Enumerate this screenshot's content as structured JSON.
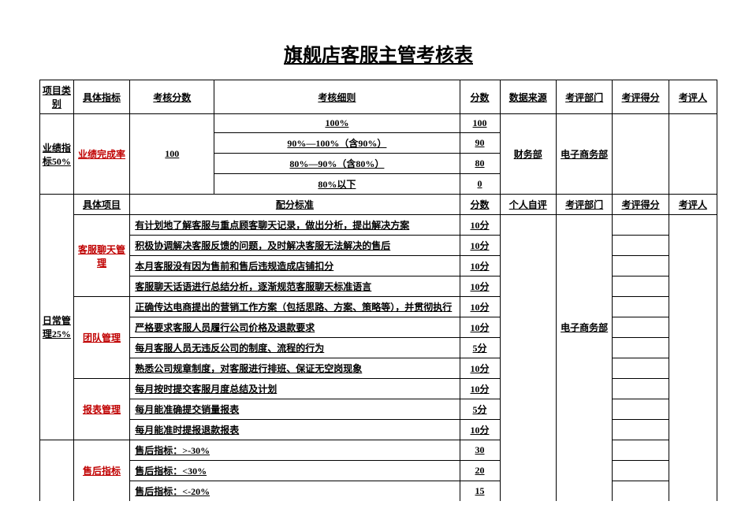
{
  "title": "旗舰店客服主管考核表",
  "header": {
    "category": "项目类别",
    "indicator": "具体指标",
    "score": "考核分数",
    "detail": "考核细则",
    "points": "分数",
    "source": "数据来源",
    "dept": "考评部门",
    "result": "考评得分",
    "reviewer": "考评人"
  },
  "section1": {
    "category": "业绩指标50%",
    "indicator": "业绩完成率",
    "score": "100",
    "rows": [
      {
        "detail": "100%",
        "points": "100"
      },
      {
        "detail": "90%—100%（含90%）",
        "points": "90"
      },
      {
        "detail": "80%—90%（含80%）",
        "points": "80"
      },
      {
        "detail": "80%以下",
        "points": "0"
      }
    ],
    "source": "财务部",
    "dept": "电子商务部"
  },
  "header2": {
    "indicator": "具体项目",
    "detail": "配分标准",
    "points": "分数",
    "source": "个人自评",
    "dept": "考评部门",
    "result": "考评得分",
    "reviewer": "考评人"
  },
  "section2": {
    "category": "日常管理25%",
    "dept": "电子商务部",
    "groups": [
      {
        "name": "客服聊天管理",
        "rows": [
          {
            "detail": "有计划地了解客服与重点顾客聊天记录，做出分析，提出解决方案",
            "points": "10分"
          },
          {
            "detail": "积极协调解决客服反馈的问题，及时解决客服无法解决的售后",
            "points": "10分"
          },
          {
            "detail": "本月客服没有因为售前和售后违规造成店铺扣分",
            "points": "10分"
          },
          {
            "detail": "客服聊天话语进行总结分析，逐渐规范客服聊天标准语言",
            "points": "10分"
          }
        ]
      },
      {
        "name": "团队管理",
        "rows": [
          {
            "detail": "正确传达电商提出的营销工作方案（包括思路、方案、策略等），并贯彻执行",
            "points": "10分"
          },
          {
            "detail": "严格要求客服人员履行公司价格及退款要求",
            "points": "10分"
          },
          {
            "detail": "每月客服人员无违反公司的制度、流程的行为",
            "points": "5分"
          },
          {
            "detail": "熟悉公司规章制度，对客服进行排班、保证无空岗现象",
            "points": "10分"
          }
        ]
      },
      {
        "name": "报表管理",
        "rows": [
          {
            "detail": "每月按时提交客服月度总结及计划",
            "points": "10分"
          },
          {
            "detail": "每月能准确提交销量报表",
            "points": "5分"
          },
          {
            "detail": "每月能准时提报退款报表",
            "points": "10分"
          }
        ]
      }
    ]
  },
  "section3": {
    "name": "售后指标",
    "rows": [
      {
        "detail": "售后指标：>-30%",
        "points": "30"
      },
      {
        "detail": "售后指标：<30%",
        "points": "20"
      },
      {
        "detail": "售后指标：<-20%",
        "points": "15"
      }
    ]
  }
}
